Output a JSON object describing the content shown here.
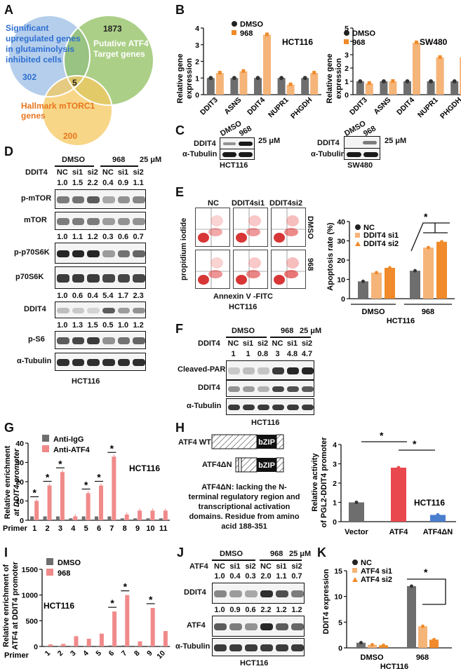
{
  "panel_letters": [
    "A",
    "B",
    "C",
    "D",
    "E",
    "F",
    "G",
    "H",
    "I",
    "J",
    "K"
  ],
  "colors": {
    "grey": "#6e6e6e",
    "light_orange": "#f5b478",
    "orange": "#f08a2a",
    "pink": "#f08a8a",
    "red": "#e8484e",
    "blue": "#4a7fd0",
    "blue_circle": "#9bbde6",
    "green_circle": "#8fbf5f",
    "yellow_circle": "#f6c85f"
  },
  "A": {
    "blue_label": [
      "Significant",
      "upregulated genes",
      "in glutaminolysis",
      "inhibited cells"
    ],
    "green_label": [
      "Putative ATF4",
      "Target genes"
    ],
    "yellow_label": [
      "Hallmark mTORC1",
      "genes"
    ],
    "blue_only": "302",
    "green_only": "1873",
    "yellow_only": "200",
    "intersection": "5"
  },
  "B": {
    "legend": [
      "DMSO",
      "968"
    ],
    "ylabel": [
      "Relative gene",
      "expression"
    ],
    "categories": [
      "DDIT3",
      "ASNS",
      "DDIT4",
      "NUPR1",
      "PHGDH"
    ],
    "left": {
      "cell": "HCT116",
      "yticks": [
        "0",
        "1",
        "2",
        "3",
        "4"
      ]
    },
    "right": {
      "cell": "SW480",
      "yticks": [
        "0",
        "1",
        "2",
        "3",
        "4",
        "5"
      ]
    }
  },
  "C": {
    "left": {
      "cols": [
        "DMSO",
        "968"
      ],
      "rows": [
        "DDIT4",
        "α-Tubulin"
      ],
      "cell": "HCT116"
    },
    "right": {
      "cols": [
        "DMSO",
        "968"
      ],
      "rows": [
        "DDIT4",
        "α-Tubulin"
      ],
      "cell": "SW480"
    },
    "dose": "25 μM"
  },
  "D": {
    "groups": [
      "DMSO",
      "968"
    ],
    "dose": "25 μM",
    "row_label": "DDIT4",
    "lanes": [
      "NC",
      "si1",
      "si2",
      "NC",
      "si1",
      "si2"
    ],
    "quant1": [
      "1.0",
      "1.5",
      "2.2",
      "0.4",
      "0.9",
      "1.1"
    ],
    "quant2": [
      "1.0",
      "1.1",
      "1.2",
      "0.3",
      "0.6",
      "0.7"
    ],
    "quant3": [
      "1.0",
      "0.6",
      "0.4",
      "5.4",
      "1.7",
      "2.3"
    ],
    "quant4": [
      "1.0",
      "1.3",
      "1.5",
      "0.5",
      "1.0",
      "1.2"
    ],
    "blots": [
      "p-mTOR",
      "mTOR",
      "p-p70S6K",
      "p70S6K",
      "DDIT4",
      "p-S6",
      "α-Tubulin"
    ],
    "cell": "HCT116"
  },
  "E": {
    "flow_cols": [
      "NC",
      "DDIT4si1",
      "DDIT4si2"
    ],
    "flow_rows": [
      "DMSO",
      "968"
    ],
    "flow_y": "propidium iodide",
    "flow_x": "Annexin V -FITC",
    "flow_cell": "HCT116",
    "legend": [
      "NC",
      "DDIT4 si1",
      "DDIT4 si2"
    ],
    "ylabel": "Apoptosis rate (%)",
    "yticks": [
      "0",
      "10",
      "20",
      "30",
      "40"
    ],
    "groups": [
      "DMSO",
      "968"
    ],
    "cell": "HCT116",
    "sig": "*"
  },
  "F": {
    "groups": [
      "DMSO",
      "968"
    ],
    "dose": "25 μM",
    "row_label": "DDIT4",
    "lanes": [
      "NC",
      "si1",
      "si2",
      "NC",
      "si1",
      "si2"
    ],
    "quant": [
      "1",
      "1",
      "0.8",
      "3",
      "4.8",
      "4.7"
    ],
    "blots": [
      "Cleaved-PARP",
      "DDIT4",
      "α-Tubulin"
    ],
    "cell": "HCT116"
  },
  "G": {
    "legend": [
      "Anti-IgG",
      "Anti-ATF4"
    ],
    "ylabel": [
      "Relative enrichment",
      "at DDIT4 promoter"
    ],
    "yticks": [
      "0",
      "10",
      "20",
      "30",
      "40"
    ],
    "xprefix": "Primer",
    "primers": [
      "1",
      "2",
      "3",
      "4",
      "5",
      "6",
      "7",
      "8",
      "9",
      "10",
      "11"
    ],
    "cell": "HCT116"
  },
  "H": {
    "wt_label": "ATF4 WT",
    "dn_label": "ATF4ΔN",
    "domain": "bZIP",
    "note": [
      "ATF4ΔN:  lacking the N-",
      "terminal regulatory region and",
      "transcriptional activation",
      "domains. Residue from amino",
      "acid 188-351"
    ],
    "ylabel": [
      "Relative activity",
      "of PGL2-DDIT4  promoter"
    ],
    "yticks": [
      "0",
      "1",
      "2",
      "3",
      "4"
    ],
    "categories": [
      "Vector",
      "ATF4",
      "ATF4ΔN"
    ],
    "cell": "HCT116"
  },
  "I": {
    "legend": [
      "DMSO",
      "968"
    ],
    "ylabel": [
      "Relative enrichment of",
      "ATF4 at DDIT4 promoter"
    ],
    "yticks": [
      "0",
      "500",
      "1000",
      "1500"
    ],
    "xprefix": "Primer",
    "primers": [
      "1",
      "2",
      "3",
      "4",
      "5",
      "6",
      "7",
      "8",
      "9",
      "10"
    ],
    "cell": "HCT116"
  },
  "J": {
    "groups": [
      "DMSO",
      "968"
    ],
    "dose": "25 μM",
    "row_label": "ATF4",
    "lanes": [
      "NC",
      "si1",
      "si2",
      "NC",
      "si1",
      "si2"
    ],
    "quant1": [
      "1.0",
      "0.4",
      "0.3",
      "2.0",
      "1.1",
      "0.7"
    ],
    "quant2": [
      "1.0",
      "0.9",
      "0.6",
      "2.2",
      "1.2",
      "1.2"
    ],
    "blots": [
      "DDIT4",
      "ATF4",
      "α-Tubulin"
    ],
    "cell": "HCT116"
  },
  "K": {
    "legend": [
      "NC",
      "ATF4 si1",
      "ATF4 si2"
    ],
    "ylabel": "DDIT4 expression",
    "yticks": [
      "0",
      "5",
      "10",
      "15"
    ],
    "groups": [
      "DMSO",
      "968"
    ],
    "cell": "HCT116",
    "sig": "*"
  },
  "chart_data": [
    {
      "panel": "B-left",
      "type": "bar",
      "title": "HCT116",
      "categories": [
        "DDIT3",
        "ASNS",
        "DDIT4",
        "NUPR1",
        "PHGDH"
      ],
      "series": [
        {
          "name": "DMSO",
          "values": [
            1,
            1,
            1,
            1,
            1
          ]
        },
        {
          "name": "968",
          "values": [
            1.3,
            1.4,
            3.6,
            0.6,
            1.3
          ]
        }
      ],
      "ylabel": "Relative gene expression",
      "ylim": [
        0,
        4
      ]
    },
    {
      "panel": "B-right",
      "type": "bar",
      "title": "SW480",
      "categories": [
        "DDIT3",
        "ASNS",
        "DDIT4",
        "NUPR1",
        "PHGDH"
      ],
      "series": [
        {
          "name": "DMSO",
          "values": [
            1,
            1,
            1,
            1,
            1
          ]
        },
        {
          "name": "968",
          "values": [
            0.85,
            1.0,
            3.9,
            2.8,
            2.8
          ]
        }
      ],
      "ylabel": "Relative gene expression",
      "ylim": [
        0,
        5
      ]
    },
    {
      "panel": "E",
      "type": "bar",
      "categories": [
        "DMSO",
        "968"
      ],
      "series": [
        {
          "name": "NC",
          "values": [
            9,
            14.5
          ]
        },
        {
          "name": "DDIT4 si1",
          "values": [
            13.5,
            26.5
          ]
        },
        {
          "name": "DDIT4 si2",
          "values": [
            16,
            29.5
          ]
        }
      ],
      "ylabel": "Apoptosis rate (%)",
      "ylim": [
        0,
        40
      ]
    },
    {
      "panel": "G",
      "type": "bar",
      "categories": [
        "1",
        "2",
        "3",
        "4",
        "5",
        "6",
        "7",
        "8",
        "9",
        "10",
        "11"
      ],
      "series": [
        {
          "name": "Anti-IgG",
          "values": [
            2,
            2,
            2,
            1,
            2,
            2,
            2,
            1,
            1,
            1,
            1
          ]
        },
        {
          "name": "Anti-ATF4",
          "values": [
            10,
            18,
            25,
            2,
            14,
            18,
            33,
            3,
            5,
            5,
            5
          ]
        }
      ],
      "ylabel": "Relative enrichment at DDIT4 promoter",
      "xlabel": "Primer",
      "ylim": [
        0,
        40
      ]
    },
    {
      "panel": "H",
      "type": "bar",
      "categories": [
        "Vector",
        "ATF4",
        "ATF4ΔN"
      ],
      "series": [
        {
          "name": "Relative activity",
          "values": [
            1.0,
            2.8,
            0.35
          ]
        }
      ],
      "ylabel": "Relative activity of PGL2-DDIT4 promoter",
      "ylim": [
        0,
        4
      ]
    },
    {
      "panel": "I",
      "type": "bar",
      "categories": [
        "1",
        "2",
        "3",
        "4",
        "5",
        "6",
        "7",
        "8",
        "9",
        "10"
      ],
      "series": [
        {
          "name": "DMSO",
          "values": [
            5,
            5,
            5,
            5,
            10,
            20,
            20,
            10,
            10,
            5
          ]
        },
        {
          "name": "968",
          "values": [
            40,
            50,
            200,
            150,
            250,
            680,
            1000,
            100,
            750,
            300
          ]
        }
      ],
      "ylabel": "Relative enrichment of ATF4 at DDIT4 promoter",
      "xlabel": "Primer",
      "ylim": [
        0,
        1500
      ]
    },
    {
      "panel": "K",
      "type": "bar",
      "categories": [
        "DMSO",
        "968"
      ],
      "series": [
        {
          "name": "NC",
          "values": [
            1,
            12
          ]
        },
        {
          "name": "ATF4 si1",
          "values": [
            0.6,
            4.2
          ]
        },
        {
          "name": "ATF4 si2",
          "values": [
            0.5,
            1.6
          ]
        }
      ],
      "ylabel": "DDIT4 expression",
      "ylim": [
        0,
        15
      ]
    }
  ]
}
